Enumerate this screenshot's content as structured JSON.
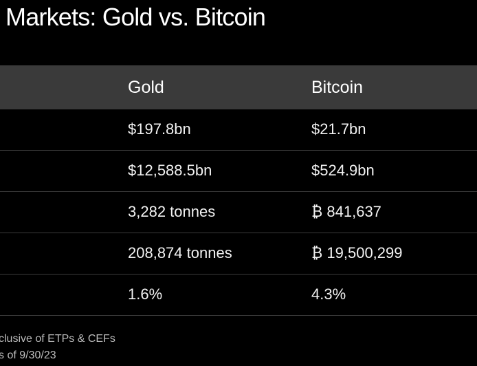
{
  "title": "Markets: Gold vs. Bitcoin",
  "table": {
    "headers": [
      "Gold",
      "Bitcoin"
    ],
    "rows": [
      [
        "$197.8bn",
        "$21.7bn"
      ],
      [
        "$12,588.5bn",
        "$524.9bn"
      ],
      [
        "3,282 tonnes",
        "₿ 841,637"
      ],
      [
        "208,874 tonnes",
        "₿ 19,500,299"
      ],
      [
        "1.6%",
        "4.3%"
      ]
    ]
  },
  "footnotes": [
    "clusive of ETPs & CEFs",
    "s of 9/30/23"
  ]
}
